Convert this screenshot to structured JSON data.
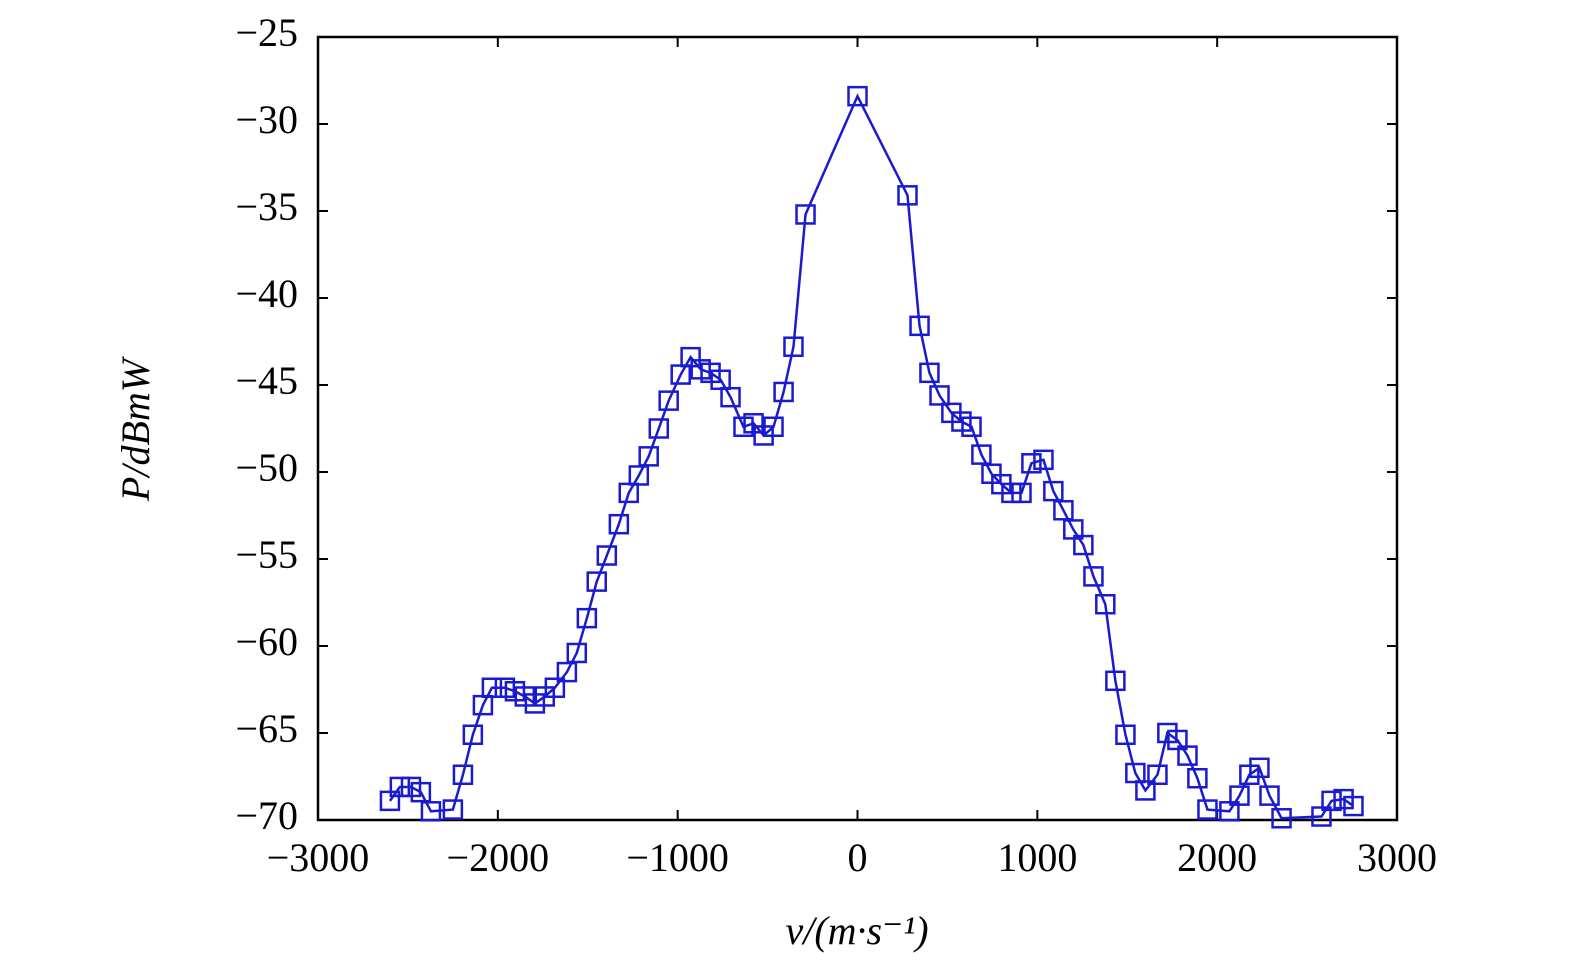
{
  "chart_data": {
    "type": "line",
    "xlabel": "v/(m·s⁻¹)",
    "ylabel": "P/dBmW",
    "x": [
      -2600,
      -2545,
      -2483,
      -2428,
      -2372,
      -2250,
      -2194,
      -2139,
      -2083,
      -2033,
      -1961,
      -1905,
      -1850,
      -1794,
      -1739,
      -1683,
      -1616,
      -1561,
      -1505,
      -1450,
      -1394,
      -1327,
      -1272,
      -1216,
      -1161,
      -1105,
      -1050,
      -983,
      -928,
      -872,
      -817,
      -761,
      -706,
      -634,
      -578,
      -522,
      -467,
      -411,
      -356,
      -289,
      0,
      278,
      345,
      400,
      456,
      522,
      578,
      634,
      689,
      745,
      800,
      856,
      912,
      967,
      1034,
      1089,
      1145,
      1200,
      1256,
      1312,
      1378,
      1434,
      1490,
      1545,
      1601,
      1668,
      1723,
      1779,
      1835,
      1890,
      1946,
      2068,
      2124,
      2179,
      2235,
      2291,
      2358,
      2580,
      2636,
      2703,
      2758
    ],
    "series": [
      {
        "name": "P",
        "color": "#1a1ad0",
        "values": [
          -68.9,
          -68.1,
          -68.1,
          -68.4,
          -69.5,
          -69.4,
          -67.4,
          -65.1,
          -63.4,
          -62.4,
          -62.4,
          -62.6,
          -62.9,
          -63.3,
          -62.9,
          -62.4,
          -61.5,
          -60.4,
          -58.4,
          -56.3,
          -54.8,
          -53.0,
          -51.2,
          -50.2,
          -49.1,
          -47.5,
          -45.9,
          -44.4,
          -43.4,
          -44.1,
          -44.3,
          -44.7,
          -45.7,
          -47.4,
          -47.2,
          -47.9,
          -47.4,
          -45.4,
          -42.8,
          -35.2,
          -28.4,
          -34.1,
          -41.6,
          -44.3,
          -45.6,
          -46.6,
          -47.1,
          -47.4,
          -49.0,
          -50.1,
          -50.7,
          -51.2,
          -51.2,
          -49.5,
          -49.3,
          -51.1,
          -52.2,
          -53.3,
          -54.2,
          -56.0,
          -57.6,
          -62.0,
          -65.1,
          -67.3,
          -68.3,
          -67.4,
          -65.0,
          -65.4,
          -66.3,
          -67.6,
          -69.4,
          -69.5,
          -68.6,
          -67.4,
          -67.0,
          -68.6,
          -69.9,
          -69.8,
          -68.9,
          -68.8,
          -69.2
        ]
      }
    ],
    "xlim": [
      -3000,
      3000
    ],
    "xticks": [
      {
        "value": -3000,
        "label": "−3000"
      },
      {
        "value": -2000,
        "label": "−2000"
      },
      {
        "value": -1000,
        "label": "−1000"
      },
      0,
      1000,
      2000,
      3000
    ],
    "ylim": [
      -70,
      -25
    ],
    "yticks": [
      {
        "value": -70,
        "label": "−70"
      },
      {
        "value": -65,
        "label": "−65"
      },
      {
        "value": -60,
        "label": "−60"
      },
      {
        "value": -55,
        "label": "−55"
      },
      {
        "value": -50,
        "label": "−50"
      },
      {
        "value": -45,
        "label": "−45"
      },
      {
        "value": -40,
        "label": "−40"
      },
      {
        "value": -35,
        "label": "−35"
      },
      {
        "value": -30,
        "label": "−30"
      },
      {
        "value": -25,
        "label": "−25"
      }
    ],
    "grid": false
  }
}
